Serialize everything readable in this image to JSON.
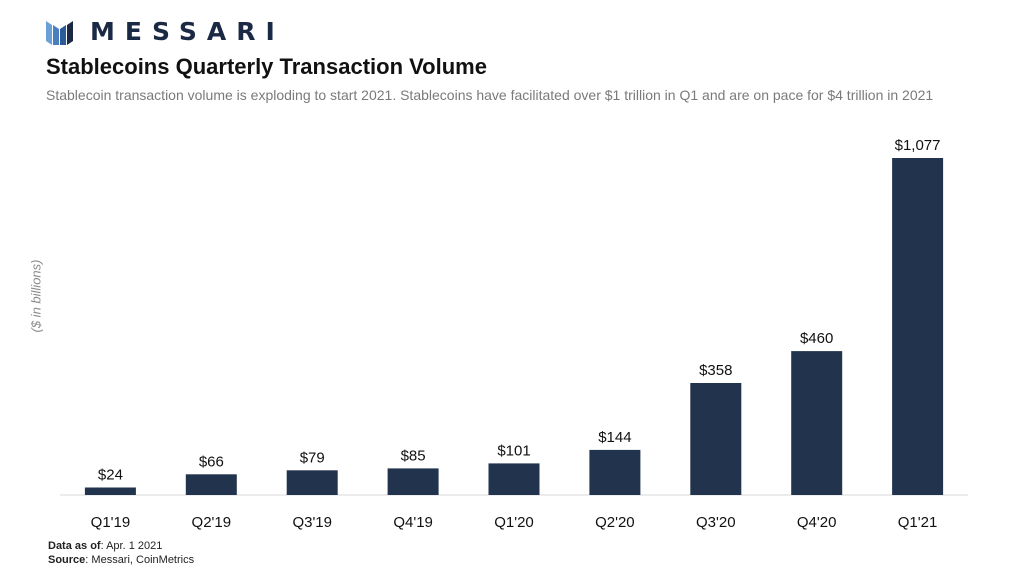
{
  "brand": {
    "name": "MESSARI",
    "icon": "messari-logo-icon"
  },
  "header": {
    "title": "Stablecoins Quarterly Transaction Volume",
    "subtitle": "Stablecoin transaction volume is exploding to start 2021. Stablecoins have facilitated over $1 trillion in Q1 and are on pace for $4 trillion in 2021"
  },
  "footer": {
    "data_as_of_label": "Data as of",
    "data_as_of_value": ": Apr. 1 2021",
    "source_label": "Source",
    "source_value": ": Messari, CoinMetrics"
  },
  "colors": {
    "bar": "#22344d",
    "axis": "#d9d9d9",
    "brand": "#1b2a44",
    "logo_accent": "#6aa0d6"
  },
  "chart_data": {
    "type": "bar",
    "title": "Stablecoins Quarterly Transaction Volume",
    "ylabel": "($ in billions)",
    "xlabel": "",
    "categories": [
      "Q1'19",
      "Q2'19",
      "Q3'19",
      "Q4'19",
      "Q1'20",
      "Q2'20",
      "Q3'20",
      "Q4'20",
      "Q1'21"
    ],
    "values": [
      24,
      66,
      79,
      85,
      101,
      144,
      358,
      460,
      1077
    ],
    "data_labels": [
      "$24",
      "$66",
      "$79",
      "$85",
      "$101",
      "$144",
      "$358",
      "$460",
      "$1,077"
    ],
    "ylim": [
      0,
      1077
    ],
    "grid": false,
    "legend": "none"
  }
}
